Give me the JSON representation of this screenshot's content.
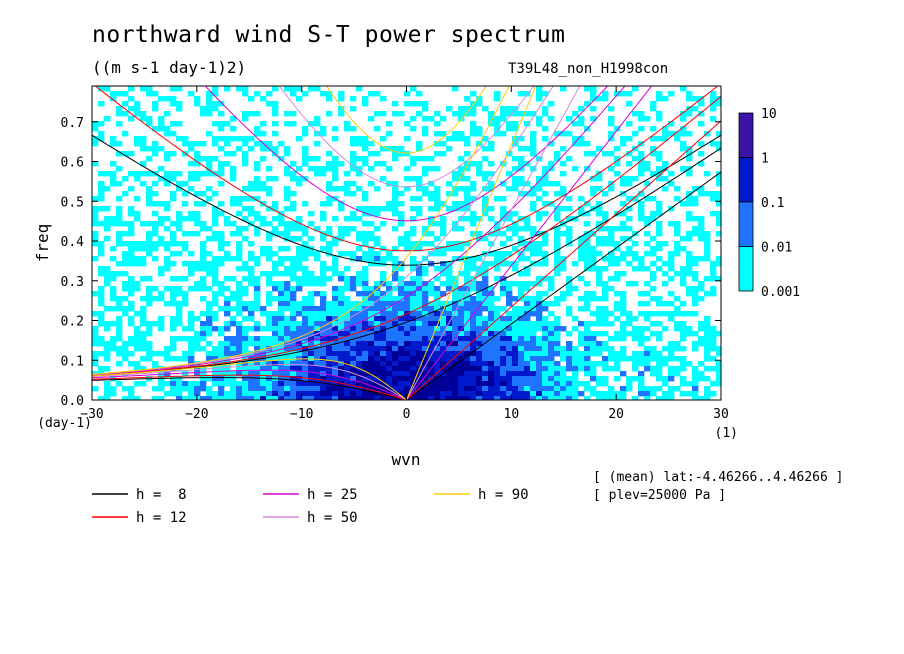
{
  "title": "northward wind S-T power spectrum",
  "subtitle": "((m s-1 day-1)2)",
  "run_label": "T39L48_non_H1998con",
  "meta_lines": [
    "[ (mean) lat:-4.46266..4.46266 ]",
    "[ plev=25000 Pa ]"
  ],
  "chart_data": {
    "type": "heatmap",
    "xlabel": "wvn",
    "ylabel": "freq",
    "x_unit": "(1)",
    "y_unit": "(day-1)",
    "xlim": [
      -30,
      30
    ],
    "ylim": [
      0,
      0.79
    ],
    "x_ticks": [
      -30,
      -20,
      -10,
      0,
      10,
      20,
      30
    ],
    "y_ticks": [
      0.0,
      0.1,
      0.2,
      0.3,
      0.4,
      0.5,
      0.6,
      0.7
    ],
    "colorbar": {
      "levels": [
        "0.001",
        "0.01",
        "0.1",
        "1",
        "10"
      ],
      "colors": [
        "#00ffff",
        "#1f74ff",
        "#0019cc",
        "#000099",
        "#3b13a8"
      ]
    },
    "series": [
      {
        "name": "h =  8",
        "h": 8,
        "color": "#000000"
      },
      {
        "name": "h = 12",
        "h": 12,
        "color": "#ff0000"
      },
      {
        "name": "h = 25",
        "h": 25,
        "color": "#d400d4"
      },
      {
        "name": "h = 50",
        "h": 50,
        "color": "#d68ad6"
      },
      {
        "name": "h = 90",
        "h": 90,
        "color": "#ffcc00"
      }
    ]
  }
}
